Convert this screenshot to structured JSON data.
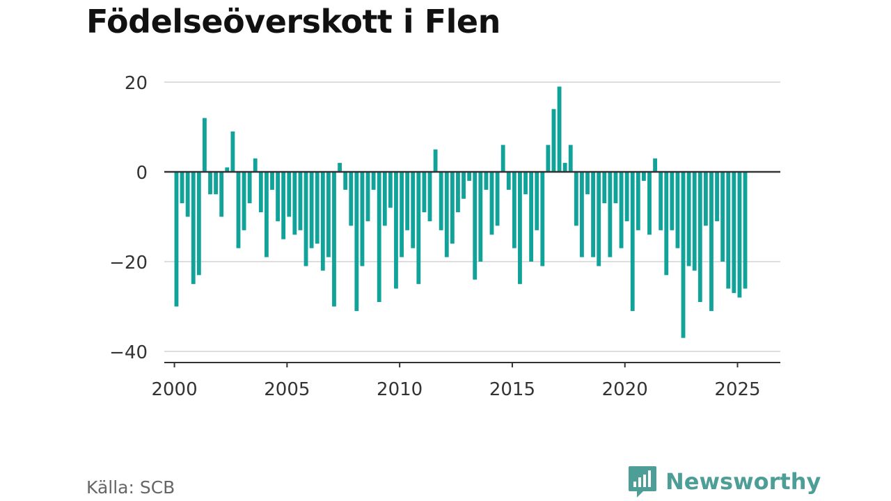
{
  "title": "Födelseöverskott i Flen",
  "source": "Källa: SCB",
  "brand": {
    "name": "Newsworthy",
    "icon": "newsworthy-logo-icon",
    "color": "#4d9e96"
  },
  "colors": {
    "bar": "#11a39a",
    "zero_line": "#333333",
    "grid": "#dddddd",
    "axis": "#333333"
  },
  "chart_data": {
    "type": "bar",
    "title": "Födelseöverskott i Flen",
    "xlabel": "",
    "ylabel": "",
    "frequency": "quarterly",
    "start": "2000Q1",
    "ylim": [
      -40,
      20
    ],
    "xlim": [
      1999.55,
      2026.9
    ],
    "grid": true,
    "y_ticks": [
      20,
      0,
      -20,
      -40
    ],
    "y_tick_labels": [
      "20",
      "0",
      "−20",
      "−40"
    ],
    "x_ticks": [
      2000,
      2005,
      2010,
      2015,
      2020,
      2025
    ],
    "x_tick_labels": [
      "2000",
      "2005",
      "2010",
      "2015",
      "2020",
      "2025"
    ],
    "values": [
      -30,
      -7,
      -10,
      -25,
      -23,
      12,
      -5,
      -5,
      -10,
      1,
      9,
      -17,
      -13,
      -7,
      3,
      -9,
      -19,
      -4,
      -11,
      -15,
      -10,
      -14,
      -13,
      -21,
      -17,
      -16,
      -22,
      -19,
      -30,
      2,
      -4,
      -12,
      -31,
      -21,
      -11,
      -4,
      -29,
      -12,
      -8,
      -26,
      -19,
      -13,
      -17,
      -25,
      -9,
      -11,
      5,
      -13,
      -19,
      -16,
      -9,
      -6,
      -2,
      -24,
      -20,
      -4,
      -14,
      -12,
      6,
      -4,
      -17,
      -25,
      -5,
      -20,
      -13,
      -21,
      6,
      14,
      19,
      2,
      6,
      -12,
      -19,
      -5,
      -19,
      -21,
      -7,
      -19,
      -7,
      -17,
      -11,
      -31,
      -13,
      -2,
      -14,
      3,
      -13,
      -23,
      -13,
      -17,
      -37,
      -21,
      -22,
      -29,
      -12,
      -31,
      -11,
      -20,
      -26,
      -27,
      -28,
      -26
    ]
  }
}
